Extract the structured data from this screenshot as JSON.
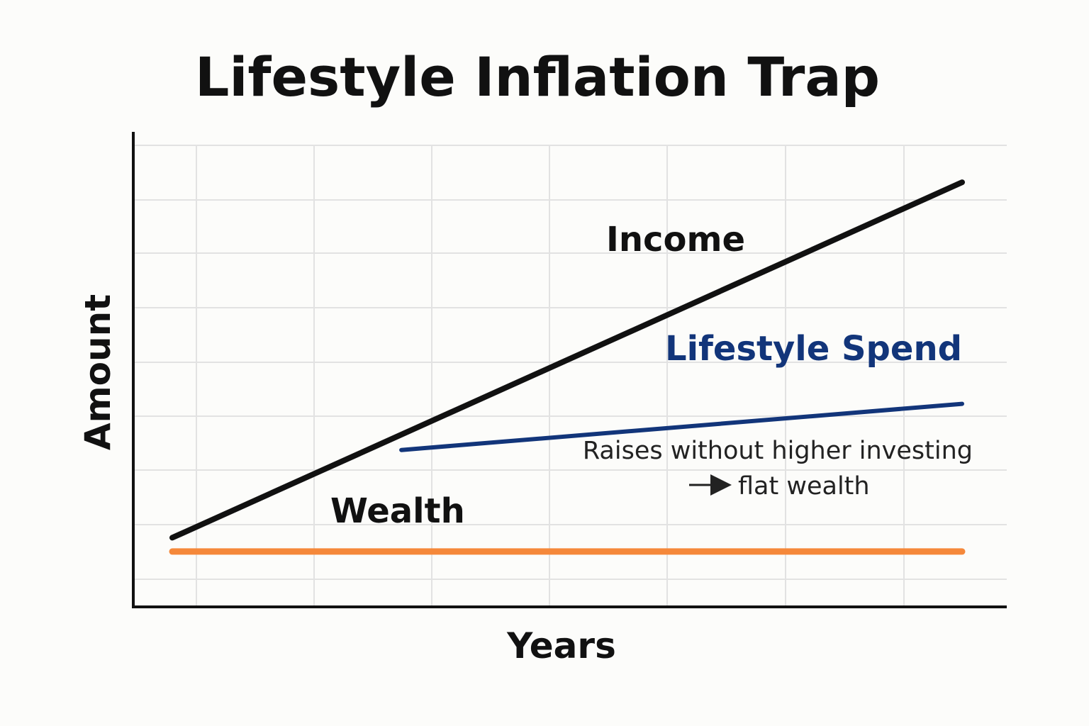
{
  "chart_data": {
    "type": "line",
    "title": "Lifestyle Inflation Trap",
    "xlabel": "Years",
    "ylabel": "Amount",
    "xlim": [
      0,
      10
    ],
    "ylim": [
      0,
      10
    ],
    "grid": true,
    "series": [
      {
        "name": "Income",
        "color": "#111111",
        "x": [
          0,
          10
        ],
        "y": [
          1.5,
          9.2
        ]
      },
      {
        "name": "Lifestyle Spend",
        "color": "#12357a",
        "x": [
          2.9,
          10
        ],
        "y": [
          3.4,
          4.4
        ]
      },
      {
        "name": "Wealth",
        "color": "#f5883a",
        "x": [
          0,
          10
        ],
        "y": [
          1.2,
          1.2
        ]
      }
    ],
    "annotation": {
      "line1": "Raises without higher investing",
      "line2": "flat wealth",
      "arrow_icon": "right-arrow-icon"
    }
  }
}
